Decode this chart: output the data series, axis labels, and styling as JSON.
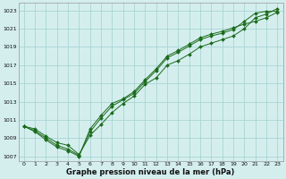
{
  "xlabel": "Graphe pression niveau de la mer (hPa)",
  "bg_color": "#d4eeee",
  "grid_color": "#aad4d4",
  "line_color": "#1a6b1a",
  "xlim_min": -0.5,
  "xlim_max": 23.5,
  "ylim_min": 1006.5,
  "ylim_max": 1023.8,
  "yticks": [
    1007,
    1009,
    1011,
    1013,
    1015,
    1017,
    1019,
    1021,
    1023
  ],
  "xticks": [
    0,
    1,
    2,
    3,
    4,
    5,
    6,
    7,
    8,
    9,
    10,
    11,
    12,
    13,
    14,
    15,
    16,
    17,
    18,
    19,
    20,
    21,
    22,
    23
  ],
  "series1": [
    1010.3,
    1010.0,
    1009.2,
    1008.5,
    1008.2,
    1007.2,
    1009.3,
    1010.5,
    1011.8,
    1012.8,
    1013.6,
    1014.9,
    1015.6,
    1017.0,
    1017.5,
    1018.2,
    1019.0,
    1019.4,
    1019.8,
    1020.2,
    1021.0,
    1022.2,
    1022.6,
    1023.2
  ],
  "series2": [
    1010.3,
    1009.8,
    1009.0,
    1008.2,
    1007.8,
    1007.1,
    1009.7,
    1011.2,
    1012.5,
    1013.2,
    1013.9,
    1015.2,
    1016.4,
    1017.8,
    1018.4,
    1019.1,
    1019.8,
    1020.2,
    1020.5,
    1020.9,
    1021.8,
    1022.7,
    1022.9,
    1022.9
  ],
  "series3": [
    1010.3,
    1009.7,
    1008.8,
    1008.0,
    1007.6,
    1007.0,
    1010.0,
    1011.5,
    1012.8,
    1013.3,
    1014.1,
    1015.4,
    1016.6,
    1018.0,
    1018.6,
    1019.3,
    1020.0,
    1020.4,
    1020.7,
    1021.1,
    1021.5,
    1021.8,
    1022.2,
    1022.8
  ]
}
